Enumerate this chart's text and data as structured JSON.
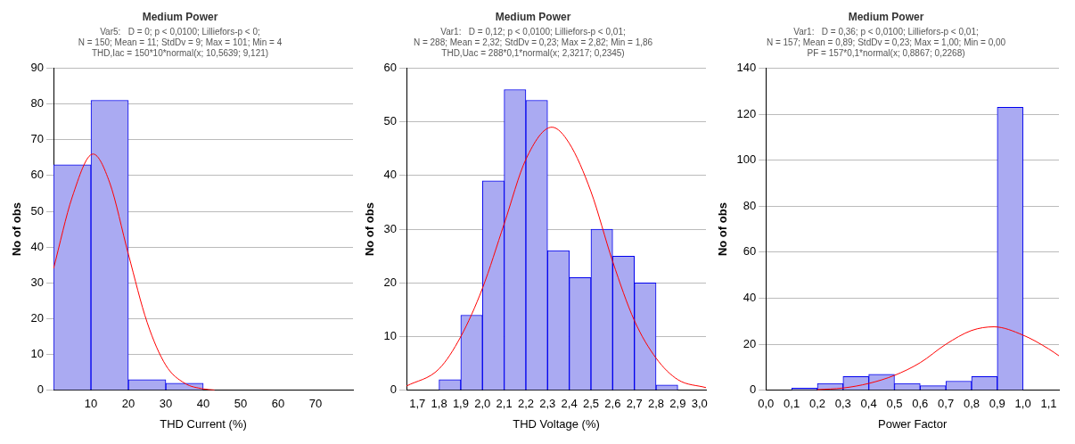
{
  "chart_data": [
    {
      "type": "histogram",
      "title": "Medium Power",
      "subtitle": "Var5:   D = 0; p < 0,0100; Lilliefors-p < 0;\nN = 150; Mean = 11; StdDv = 9; Max = 101; Min = 4",
      "annotations": [
        "THD,Iac = 150*10*normal(x; 10,5639; 9,121)"
      ],
      "xlabel": "THD Current (%)",
      "ylabel": "No of obs",
      "bins": [
        0,
        10,
        20,
        30,
        40
      ],
      "series": [
        {
          "color": "#aaaaf2",
          "values": [
            63,
            81,
            3,
            2
          ]
        },
        {
          "type": "line",
          "color": "#ff0000",
          "x": [
            0,
            5,
            10.56,
            15,
            20,
            25,
            30,
            35,
            40,
            43
          ],
          "values": [
            34,
            54,
            66,
            58,
            38,
            19,
            7,
            2,
            0.4,
            0.1
          ]
        }
      ],
      "xlim": [
        0,
        80
      ],
      "xticks": [
        10,
        20,
        30,
        40,
        50,
        60,
        70
      ],
      "ylim": [
        0,
        90
      ],
      "yticks": [
        0,
        10,
        20,
        30,
        40,
        50,
        60,
        70,
        80,
        90
      ],
      "grid": "y",
      "legend": false
    },
    {
      "type": "histogram",
      "title": "Medium Power",
      "subtitle": "Var1:   D = 0,12; p < 0,0100; Lilliefors-p < 0,01;\nN = 288; Mean = 2,32; StdDv = 0,23; Max = 2,82; Min = 1,86",
      "annotations": [
        "THD,Uac = 288*0,1*normal(x; 2,3217; 0,2345)"
      ],
      "xlabel": "THD Voltage (%)",
      "ylabel": "No of obs",
      "bins": [
        1.8,
        1.9,
        2.0,
        2.1,
        2.2,
        2.3,
        2.4,
        2.5,
        2.6,
        2.7,
        2.8,
        2.9
      ],
      "series": [
        {
          "color": "#aaaaf2",
          "values": [
            2,
            14,
            39,
            56,
            54,
            26,
            21,
            30,
            25,
            20,
            1
          ]
        },
        {
          "type": "line",
          "color": "#ff0000",
          "x": [
            1.65,
            1.8,
            1.9,
            2.0,
            2.1,
            2.2,
            2.32,
            2.4,
            2.5,
            2.6,
            2.7,
            2.8,
            2.9,
            3.03
          ],
          "values": [
            0.8,
            4,
            10,
            19,
            31,
            43,
            49,
            46,
            37,
            24,
            13,
            6,
            2,
            0.5
          ]
        }
      ],
      "xlim": [
        1.65,
        3.03
      ],
      "xticks": [
        {
          "value": 1.7,
          "label": "1,7"
        },
        {
          "value": 1.8,
          "label": "1,8"
        },
        {
          "value": 1.9,
          "label": "1,9"
        },
        {
          "value": 2.0,
          "label": "2,0"
        },
        {
          "value": 2.1,
          "label": "2,1"
        },
        {
          "value": 2.2,
          "label": "2,2"
        },
        {
          "value": 2.3,
          "label": "2,3"
        },
        {
          "value": 2.4,
          "label": "2,4"
        },
        {
          "value": 2.5,
          "label": "2,5"
        },
        {
          "value": 2.6,
          "label": "2,6"
        },
        {
          "value": 2.7,
          "label": "2,7"
        },
        {
          "value": 2.8,
          "label": "2,8"
        },
        {
          "value": 2.9,
          "label": "2,9"
        },
        {
          "value": 3.0,
          "label": "3,0"
        }
      ],
      "ylim": [
        0,
        60
      ],
      "yticks": [
        0,
        10,
        20,
        30,
        40,
        50,
        60
      ],
      "grid": "y",
      "legend": false
    },
    {
      "type": "histogram",
      "title": "Medium Power",
      "subtitle": "Var1:   D = 0,36; p < 0,0100; Lilliefors-p < 0,01;\nN = 157; Mean = 0,89; StdDv = 0,23; Max = 1,00; Min = 0,00",
      "annotations": [
        "PF = 157*0,1*normal(x; 0,8867; 0,2268)"
      ],
      "xlabel": "Power Factor",
      "ylabel": "No of obs",
      "bins": [
        0.1,
        0.2,
        0.3,
        0.4,
        0.5,
        0.6,
        0.7,
        0.8,
        0.9,
        1.0
      ],
      "series": [
        {
          "color": "#aaaaf2",
          "values": [
            1,
            3,
            6,
            7,
            3,
            2,
            4,
            6,
            123
          ]
        },
        {
          "type": "line",
          "color": "#ff0000",
          "x": [
            0.2,
            0.3,
            0.4,
            0.5,
            0.6,
            0.7,
            0.8,
            0.887,
            1.0,
            1.1,
            1.14
          ],
          "values": [
            0.3,
            1,
            3,
            6.5,
            12,
            20,
            26,
            27.6,
            24,
            18,
            15
          ]
        }
      ],
      "xlim": [
        0,
        1.14
      ],
      "xticks": [
        {
          "value": 0,
          "label": "0,0"
        },
        {
          "value": 0.1,
          "label": "0,1"
        },
        {
          "value": 0.2,
          "label": "0,2"
        },
        {
          "value": 0.3,
          "label": "0,3"
        },
        {
          "value": 0.4,
          "label": "0,4"
        },
        {
          "value": 0.5,
          "label": "0,5"
        },
        {
          "value": 0.6,
          "label": "0,6"
        },
        {
          "value": 0.7,
          "label": "0,7"
        },
        {
          "value": 0.8,
          "label": "0,8"
        },
        {
          "value": 0.9,
          "label": "0,9"
        },
        {
          "value": 1.0,
          "label": "1,0"
        },
        {
          "value": 1.1,
          "label": "1,1"
        }
      ],
      "ylim": [
        0,
        140
      ],
      "yticks": [
        0,
        20,
        40,
        60,
        80,
        100,
        120,
        140
      ],
      "grid": "y",
      "legend": false
    }
  ]
}
